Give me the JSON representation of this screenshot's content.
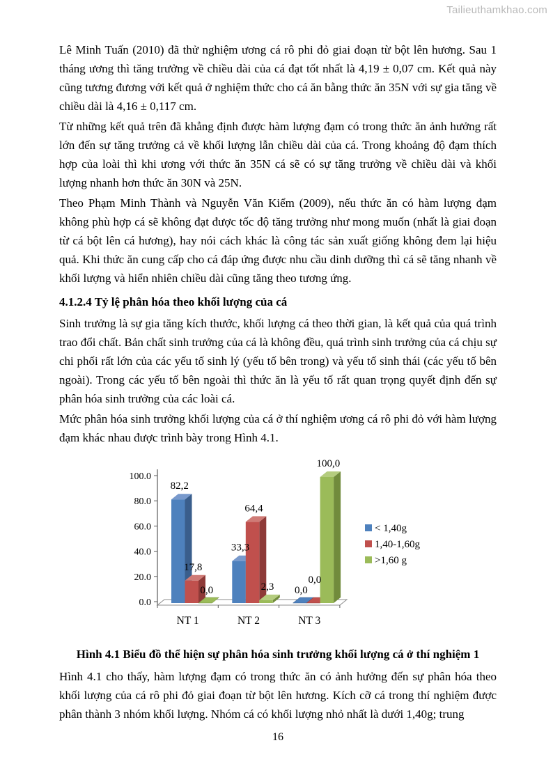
{
  "watermark": "Tailieuthamkhao.com",
  "page_number": "16",
  "document": {
    "p1": "Lê Minh Tuấn (2010) đã thử nghiệm ương cá rô phi đỏ giai đoạn từ bột lên hương. Sau 1 tháng ương thì tăng trưởng về chiều dài của cá đạt tốt nhất là 4,19 ± 0,07 cm. Kết quả này cũng tương đương với kết quả ở nghiệm thức cho cá ăn bằng thức ăn 35N với sự gia tăng về chiều dài là 4,16 ± 0,117 cm.",
    "p2": "Từ những kết quả trên đã khẳng định được hàm lượng đạm có trong thức ăn ảnh hưởng rất lớn đến sự tăng trưởng cả về khối lượng lẫn chiều dài của cá. Trong khoảng độ đạm thích hợp của loài thì khi ương với thức ăn 35N cá sẽ có sự tăng trưởng về chiều dài và khối lượng nhanh hơn thức ăn 30N và 25N.",
    "p3": "Theo Phạm Minh Thành và Nguyễn Văn Kiểm (2009), nếu thức ăn có hàm lượng đạm không phù hợp cá sẽ không đạt được tốc độ tăng trưởng như mong muốn (nhất là giai đoạn từ cá bột lên cá hương), hay nói cách khác là công tác sản xuất giống không đem lại hiệu quả. Khi thức ăn cung cấp cho cá đáp ứng được nhu cầu dinh dưỡng thì cá sẽ tăng nhanh về khối lượng và hiển nhiên chiều dài cũng tăng theo tương ứng.",
    "heading": "4.1.2.4 Tỷ lệ phân hóa theo khối lượng của cá",
    "p4": "Sinh trưởng là sự gia tăng kích thước, khối lượng cá theo thời gian, là kết quả của quá trình trao đổi chất. Bản chất sinh trưởng của cá là không đều, quá trình sinh trưởng của cá chịu sự chi phối rất lớn của các yếu tố sinh lý (yếu tố bên trong) và yếu tố sinh thái (các yếu tố bên ngoài). Trong các yếu tố bên ngoài thì thức ăn là yếu tố rất quan trọng quyết định đến sự phân hóa sinh trưởng của các loài cá.",
    "p5": "Mức phân hóa sinh trưởng khối lượng của cá ở thí nghiệm ương cá rô phi đỏ với hàm lượng đạm khác nhau được trình bày trong Hình 4.1.",
    "figure_caption": "Hình 4.1 Biểu đồ thể hiện sự phân hóa sinh trưởng khối lượng cá ở thí nghiệm 1",
    "p6": "Hình 4.1 cho thấy, hàm lượng đạm có trong thức ăn có ảnh hưởng đến sự phân hóa theo khối lượng của cá rô phi đỏ giai đoạn từ bột lên hương. Kích cỡ cá trong thí nghiệm được phân thành 3 nhóm khối lượng. Nhóm cá có khối lượng nhỏ nhất là dưới 1,40g; trung"
  },
  "chart_data": {
    "type": "bar",
    "style": "3d-clustered-column",
    "title": "",
    "xlabel": "",
    "ylabel": "",
    "categories": [
      "NT 1",
      "NT 2",
      "NT 3"
    ],
    "series": [
      {
        "name": "< 1,40g",
        "values": [
          82.2,
          33.3,
          0.0
        ],
        "labels": [
          "82,2",
          "33,3",
          "0,0"
        ],
        "color": "#4E81BD",
        "color_dark": "#3A5E8C",
        "color_light": "#7899CC"
      },
      {
        "name": "1,40-1,60g",
        "values": [
          17.8,
          64.4,
          0.0
        ],
        "labels": [
          "17,8",
          "64,4",
          "0,0"
        ],
        "color": "#C0504D",
        "color_dark": "#8E3A38",
        "color_light": "#CF7B76"
      },
      {
        "name": ">1,60 g",
        "values": [
          0.0,
          2.3,
          100.0
        ],
        "labels": [
          "0,0",
          "2,3",
          "100,0"
        ],
        "color": "#9BBB59",
        "color_dark": "#718B3C",
        "color_light": "#B4CC7E"
      }
    ],
    "ylim": [
      0,
      100
    ],
    "yticks": [
      "0.0",
      "20.0",
      "40.0",
      "60.0",
      "80.0",
      "100.0"
    ],
    "grid": false,
    "legend_position": "right",
    "axis_color": "#595959",
    "floor_edge_color": "#8c8c8c"
  }
}
